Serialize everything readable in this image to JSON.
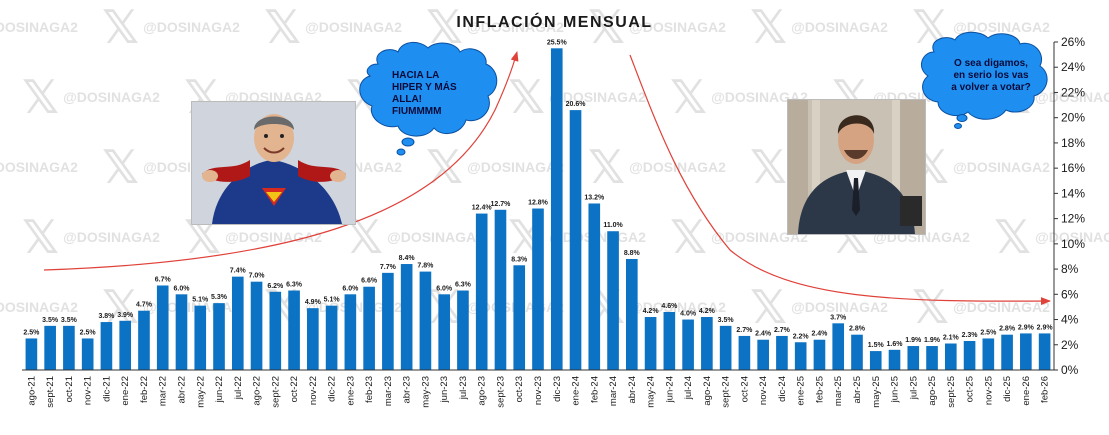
{
  "watermark": {
    "handle": "@DOSINAGA2",
    "icon": "x-logo-icon"
  },
  "bubble_left": {
    "lines": [
      "HACIA LA",
      "HIPER Y MÁS",
      "ALLA!",
      "FIUMMMM"
    ],
    "color": "#1e8ff0"
  },
  "bubble_right": {
    "lines": [
      "O sea digamos,",
      "en serio los vas",
      "a volver a votar?"
    ],
    "color": "#1e8ff0"
  },
  "photo_left": {
    "icon": "superhero-man-photo"
  },
  "photo_right": {
    "icon": "man-in-suit-photo"
  },
  "colors": {
    "bar": "#0b72c4",
    "arrow": "#e0423a",
    "grid": "#d0d0d0",
    "axis": "#333333"
  },
  "chart_data": {
    "type": "bar",
    "title": "INFLACIÓN MENSUAL",
    "categories": [
      "ago-21",
      "sept-21",
      "oct-21",
      "nov-21",
      "dic-21",
      "ene-22",
      "feb-22",
      "mar-22",
      "abr-22",
      "may-22",
      "jun-22",
      "jul-22",
      "ago-22",
      "sept-22",
      "oct-22",
      "nov-22",
      "dic-22",
      "ene-23",
      "feb-23",
      "mar-23",
      "abr-23",
      "may-23",
      "jun-23",
      "jul-23",
      "ago-23",
      "sept-23",
      "oct-23",
      "nov-23",
      "dic-23",
      "ene-24",
      "feb-24",
      "mar-24",
      "abr-24",
      "may-24",
      "jun-24",
      "jul-24",
      "ago-24",
      "sept-24",
      "oct-24",
      "nov-24",
      "dic-24",
      "ene-25",
      "feb-25",
      "mar-25",
      "abr-25",
      "may-25",
      "jun-25",
      "jul-25",
      "ago-25",
      "sept-25",
      "oct-25",
      "nov-25",
      "dic-25",
      "ene-26",
      "feb-26"
    ],
    "values": [
      2.5,
      3.5,
      3.5,
      2.5,
      3.8,
      3.9,
      4.7,
      6.7,
      6.0,
      5.1,
      5.3,
      7.4,
      7.0,
      6.2,
      6.3,
      4.9,
      5.1,
      6.0,
      6.6,
      7.7,
      8.4,
      7.8,
      6.0,
      6.3,
      12.4,
      12.7,
      8.3,
      12.8,
      25.5,
      20.6,
      13.2,
      11.0,
      8.8,
      4.2,
      4.6,
      4.0,
      4.2,
      3.5,
      2.7,
      2.4,
      2.7,
      2.2,
      2.4,
      3.7,
      2.8,
      1.5,
      1.6,
      1.9,
      1.9,
      2.1,
      2.3,
      2.5,
      2.8,
      2.9,
      2.9
    ],
    "labels": [
      "2.5%",
      "3.5%",
      "3.5%",
      "2.5%",
      "3.8%",
      "3.9%",
      "4.7%",
      "6.7%",
      "6.0%",
      "5.1%",
      "5.3%",
      "7.4%",
      "7.0%",
      "6.2%",
      "6.3%",
      "4.9%",
      "5.1%",
      "6.0%",
      "6.6%",
      "7.7%",
      "8.4%",
      "7.8%",
      "6.0%",
      "6.3%",
      "12.4%",
      "12.7%",
      "8.3%",
      "12.8%",
      "25.5%",
      "20.6%",
      "13.2%",
      "11.0%",
      "8.8%",
      "4.2%",
      "4.6%",
      "4.0%",
      "4.2%",
      "3.5%",
      "2.7%",
      "2.4%",
      "2.7%",
      "2.2%",
      "2.4%",
      "3.7%",
      "2.8%",
      "1.5%",
      "1.6%",
      "1.9%",
      "1.9%",
      "2.1%",
      "2.3%",
      "2.5%",
      "2.8%",
      "2.9%",
      "2.9%"
    ],
    "ylim": [
      0,
      26
    ],
    "yticks": [
      0,
      2,
      4,
      6,
      8,
      10,
      12,
      14,
      16,
      18,
      20,
      22,
      24,
      26
    ],
    "ytick_labels": [
      "0%",
      "2%",
      "4%",
      "6%",
      "8%",
      "10%",
      "12%",
      "14%",
      "16%",
      "18%",
      "20%",
      "22%",
      "24%",
      "26%"
    ],
    "y_axis_side": "right",
    "grid": false,
    "legend": "none"
  }
}
